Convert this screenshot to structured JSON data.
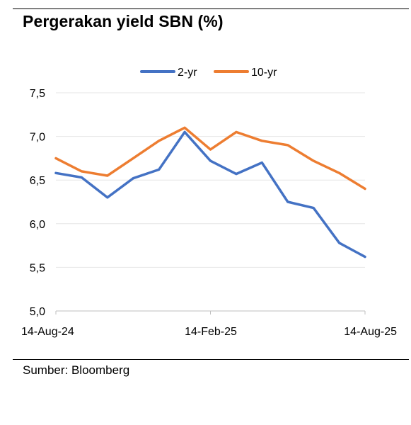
{
  "header": {
    "title": "Pergerakan yield SBN (%)"
  },
  "footer": {
    "source": "Sumber: Bloomberg"
  },
  "chart_data": {
    "type": "line",
    "title": "Pergerakan yield SBN (%)",
    "xlabel": "",
    "ylabel": "",
    "ylim": [
      5.0,
      7.5
    ],
    "yticks": [
      "5,0",
      "5,5",
      "6,0",
      "6,5",
      "7,0",
      "7,5"
    ],
    "xticks": [
      "14-Aug-24",
      "14-Feb-25",
      "14-Aug-25"
    ],
    "grid": true,
    "legend_position": "top",
    "x": [
      "2024-08",
      "2024-09",
      "2024-10",
      "2024-11",
      "2024-12",
      "2025-01",
      "2025-02",
      "2025-03",
      "2025-04",
      "2025-05",
      "2025-06",
      "2025-07",
      "2025-08"
    ],
    "series": [
      {
        "name": "2-yr",
        "color": "#4472C4",
        "values": [
          6.58,
          6.53,
          6.3,
          6.52,
          6.62,
          7.05,
          6.72,
          6.57,
          6.7,
          6.25,
          6.18,
          5.78,
          5.62
        ]
      },
      {
        "name": "10-yr",
        "color": "#ED7D31",
        "values": [
          6.75,
          6.6,
          6.55,
          6.75,
          6.95,
          7.1,
          6.85,
          7.05,
          6.95,
          6.9,
          6.72,
          6.58,
          6.4
        ]
      }
    ]
  }
}
